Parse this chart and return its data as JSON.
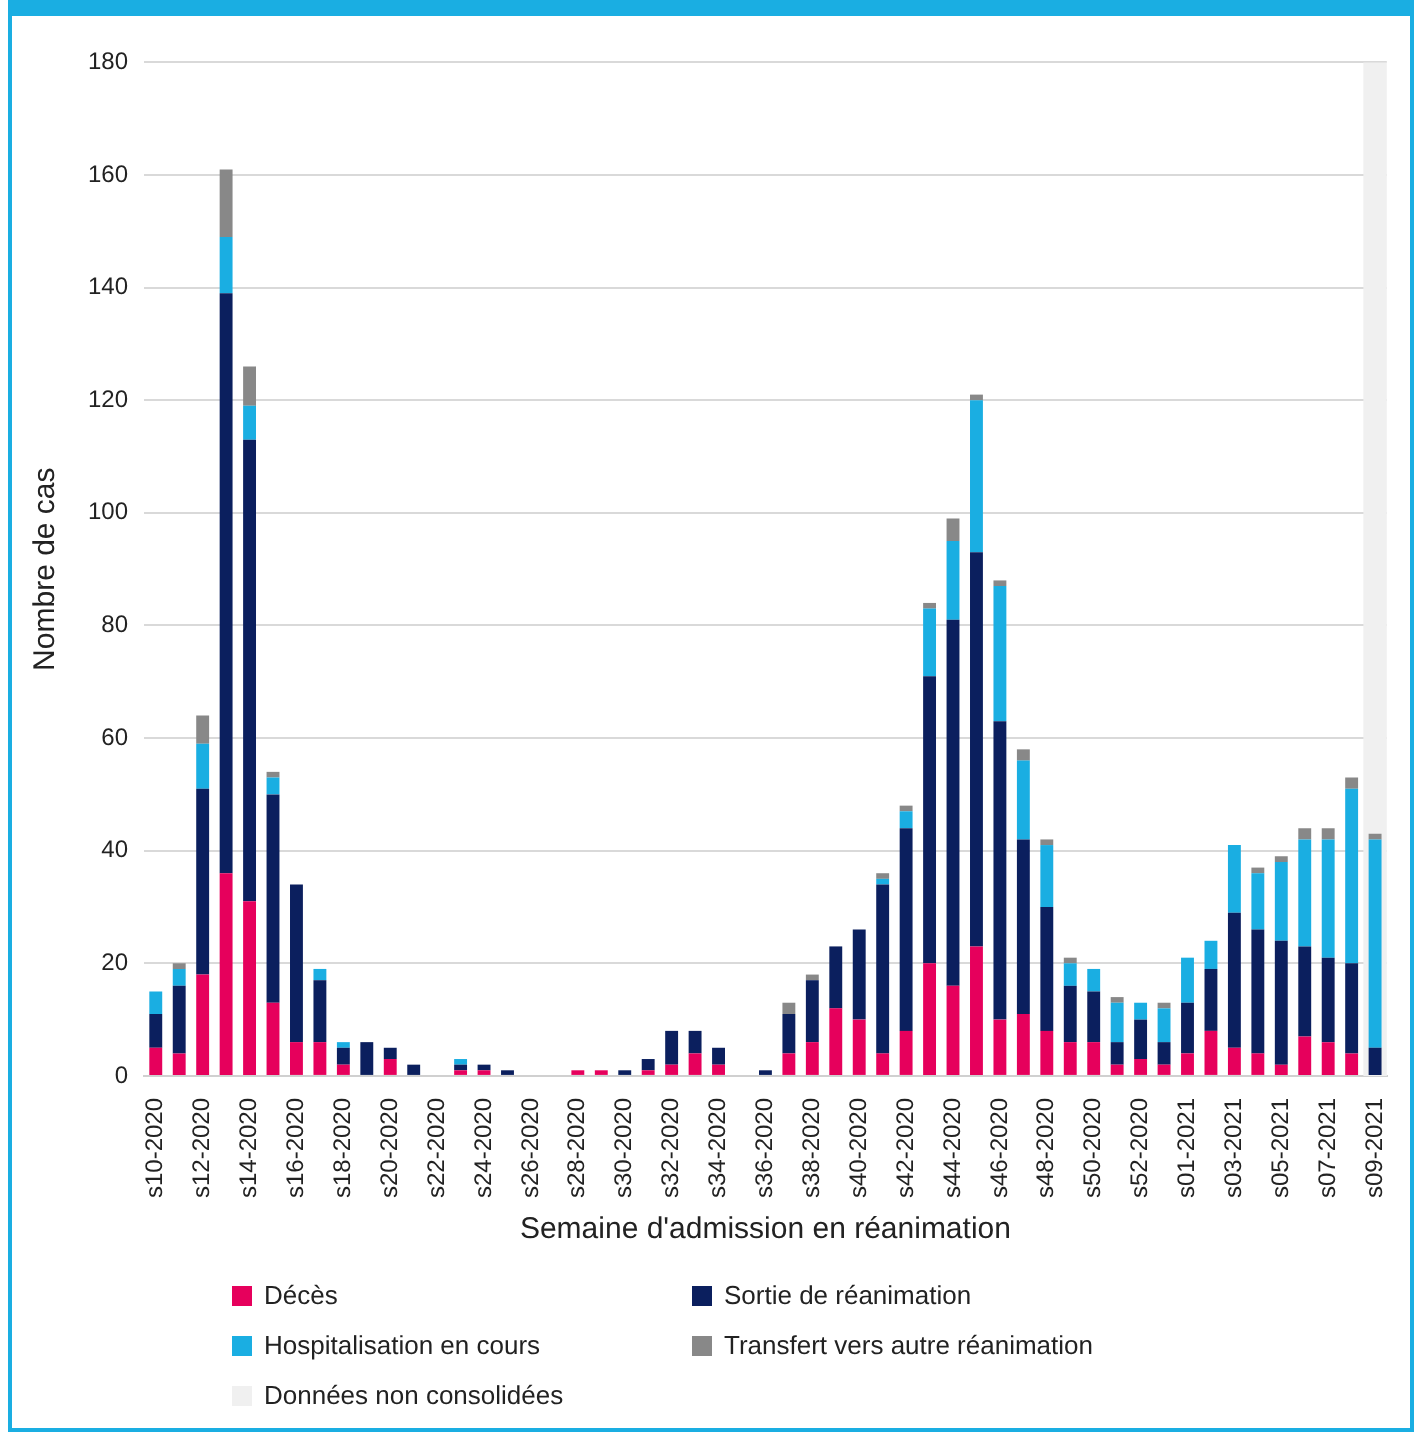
{
  "chart_data": {
    "type": "bar",
    "stacked": true,
    "xlabel": "Semaine d'admission en réanimation",
    "ylabel": "Nombre de cas",
    "categories": [
      "s10-2020",
      null,
      "s12-2020",
      null,
      "s14-2020",
      null,
      "s16-2020",
      null,
      "s18-2020",
      null,
      "s20-2020",
      null,
      "s22-2020",
      null,
      "s24-2020",
      null,
      "s26-2020",
      null,
      "s28-2020",
      null,
      "s30-2020",
      null,
      "s32-2020",
      null,
      "s34-2020",
      null,
      "s36-2020",
      null,
      "s38-2020",
      null,
      "s40-2020",
      null,
      "s42-2020",
      null,
      "s44-2020",
      null,
      "s46-2020",
      null,
      "s48-2020",
      null,
      "s50-2020",
      null,
      "s52-2020",
      null,
      "s01-2021",
      null,
      "s03-2021",
      null,
      "s05-2021",
      null,
      "s07-2021",
      null,
      "s09-2021"
    ],
    "series": [
      {
        "name": "Décès",
        "color": "#e6005c",
        "values": [
          5,
          4,
          18,
          36,
          31,
          13,
          6,
          6,
          2,
          0,
          3,
          0,
          0,
          1,
          1,
          0,
          0,
          0,
          1,
          1,
          0,
          1,
          2,
          4,
          2,
          0,
          0,
          4,
          6,
          12,
          10,
          4,
          8,
          20,
          16,
          23,
          10,
          11,
          8,
          6,
          6,
          2,
          3,
          2,
          4,
          8,
          5,
          4,
          2,
          7,
          6,
          4,
          0
        ]
      },
      {
        "name": "Sortie de réanimation",
        "color": "#0b1f5e",
        "values": [
          6,
          12,
          33,
          103,
          82,
          37,
          28,
          11,
          3,
          6,
          2,
          2,
          0,
          1,
          1,
          1,
          0,
          0,
          0,
          0,
          1,
          2,
          6,
          4,
          3,
          0,
          1,
          7,
          11,
          11,
          16,
          30,
          36,
          51,
          65,
          70,
          53,
          31,
          22,
          10,
          9,
          4,
          7,
          4,
          9,
          11,
          24,
          22,
          22,
          16,
          15,
          16,
          5
        ]
      },
      {
        "name": "Hospitalisation en cours",
        "color": "#1aaee2",
        "values": [
          4,
          3,
          8,
          10,
          6,
          3,
          0,
          2,
          1,
          0,
          0,
          0,
          0,
          1,
          0,
          0,
          0,
          0,
          0,
          0,
          0,
          0,
          0,
          0,
          0,
          0,
          0,
          0,
          0,
          0,
          0,
          1,
          3,
          12,
          14,
          27,
          24,
          14,
          11,
          4,
          4,
          7,
          3,
          6,
          8,
          5,
          12,
          10,
          14,
          19,
          21,
          31,
          37
        ]
      },
      {
        "name": "Transfert vers autre réanimation",
        "color": "#888888",
        "values": [
          0,
          1,
          5,
          12,
          7,
          1,
          0,
          0,
          0,
          0,
          0,
          0,
          0,
          0,
          0,
          0,
          0,
          0,
          0,
          0,
          0,
          0,
          0,
          0,
          0,
          0,
          0,
          2,
          1,
          0,
          0,
          1,
          1,
          1,
          4,
          1,
          1,
          2,
          1,
          1,
          0,
          1,
          0,
          1,
          0,
          0,
          0,
          1,
          1,
          2,
          2,
          2,
          1
        ]
      }
    ],
    "ylim": [
      0,
      180
    ],
    "yticks": [
      0,
      20,
      40,
      60,
      80,
      100,
      120,
      140,
      160,
      180
    ],
    "grid": "y",
    "legend": "bottom",
    "bands": [
      {
        "axis": "x",
        "from": "s09-2021",
        "to": "s09-2021",
        "label": "Données non consolidées",
        "color": "#f0f0f0"
      }
    ]
  }
}
